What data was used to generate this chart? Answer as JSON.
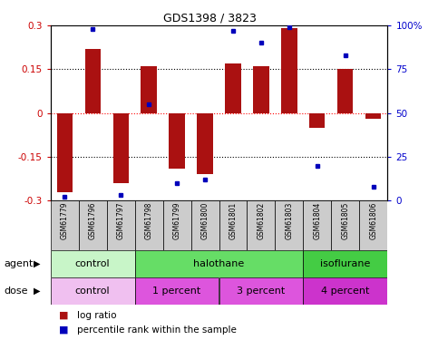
{
  "title": "GDS1398 / 3823",
  "samples": [
    "GSM61779",
    "GSM61796",
    "GSM61797",
    "GSM61798",
    "GSM61799",
    "GSM61800",
    "GSM61801",
    "GSM61802",
    "GSM61803",
    "GSM61804",
    "GSM61805",
    "GSM61806"
  ],
  "log_ratios": [
    -0.27,
    0.22,
    -0.24,
    0.16,
    -0.19,
    -0.21,
    0.17,
    0.16,
    0.29,
    -0.05,
    0.15,
    -0.02
  ],
  "percentile_ranks": [
    2,
    98,
    3,
    55,
    10,
    12,
    97,
    90,
    99,
    20,
    83,
    8
  ],
  "bar_color": "#aa1111",
  "dot_color": "#0000bb",
  "ylim_left": [
    -0.3,
    0.3
  ],
  "ylim_right": [
    0,
    100
  ],
  "yticks_left": [
    -0.3,
    -0.15,
    0,
    0.15,
    0.3
  ],
  "yticks_right": [
    0,
    25,
    50,
    75,
    100
  ],
  "ytick_labels_left": [
    "-0.3",
    "-0.15",
    "0",
    "0.15",
    "0.3"
  ],
  "ytick_labels_right": [
    "0",
    "25",
    "50",
    "75",
    "100%"
  ],
  "hlines": [
    -0.15,
    0.15
  ],
  "zero_line_color": "#ff0000",
  "dotted_line_color": "#000000",
  "agent_groups": [
    {
      "label": "control",
      "start": 0,
      "end": 3,
      "color": "#c8f5c8"
    },
    {
      "label": "halothane",
      "start": 3,
      "end": 9,
      "color": "#66dd66"
    },
    {
      "label": "isoflurane",
      "start": 9,
      "end": 12,
      "color": "#44cc44"
    }
  ],
  "dose_groups": [
    {
      "label": "control",
      "start": 0,
      "end": 3,
      "color": "#f0c0f0"
    },
    {
      "label": "1 percent",
      "start": 3,
      "end": 6,
      "color": "#dd55dd"
    },
    {
      "label": "3 percent",
      "start": 6,
      "end": 9,
      "color": "#dd55dd"
    },
    {
      "label": "4 percent",
      "start": 9,
      "end": 12,
      "color": "#cc33cc"
    }
  ],
  "legend_bar_color": "#aa1111",
  "legend_dot_color": "#0000bb",
  "legend_text1": "log ratio",
  "legend_text2": "percentile rank within the sample",
  "agent_label": "agent",
  "dose_label": "dose",
  "bar_width": 0.55,
  "left_tick_color": "#cc0000",
  "right_tick_color": "#0000cc",
  "bg_color": "#ffffff"
}
